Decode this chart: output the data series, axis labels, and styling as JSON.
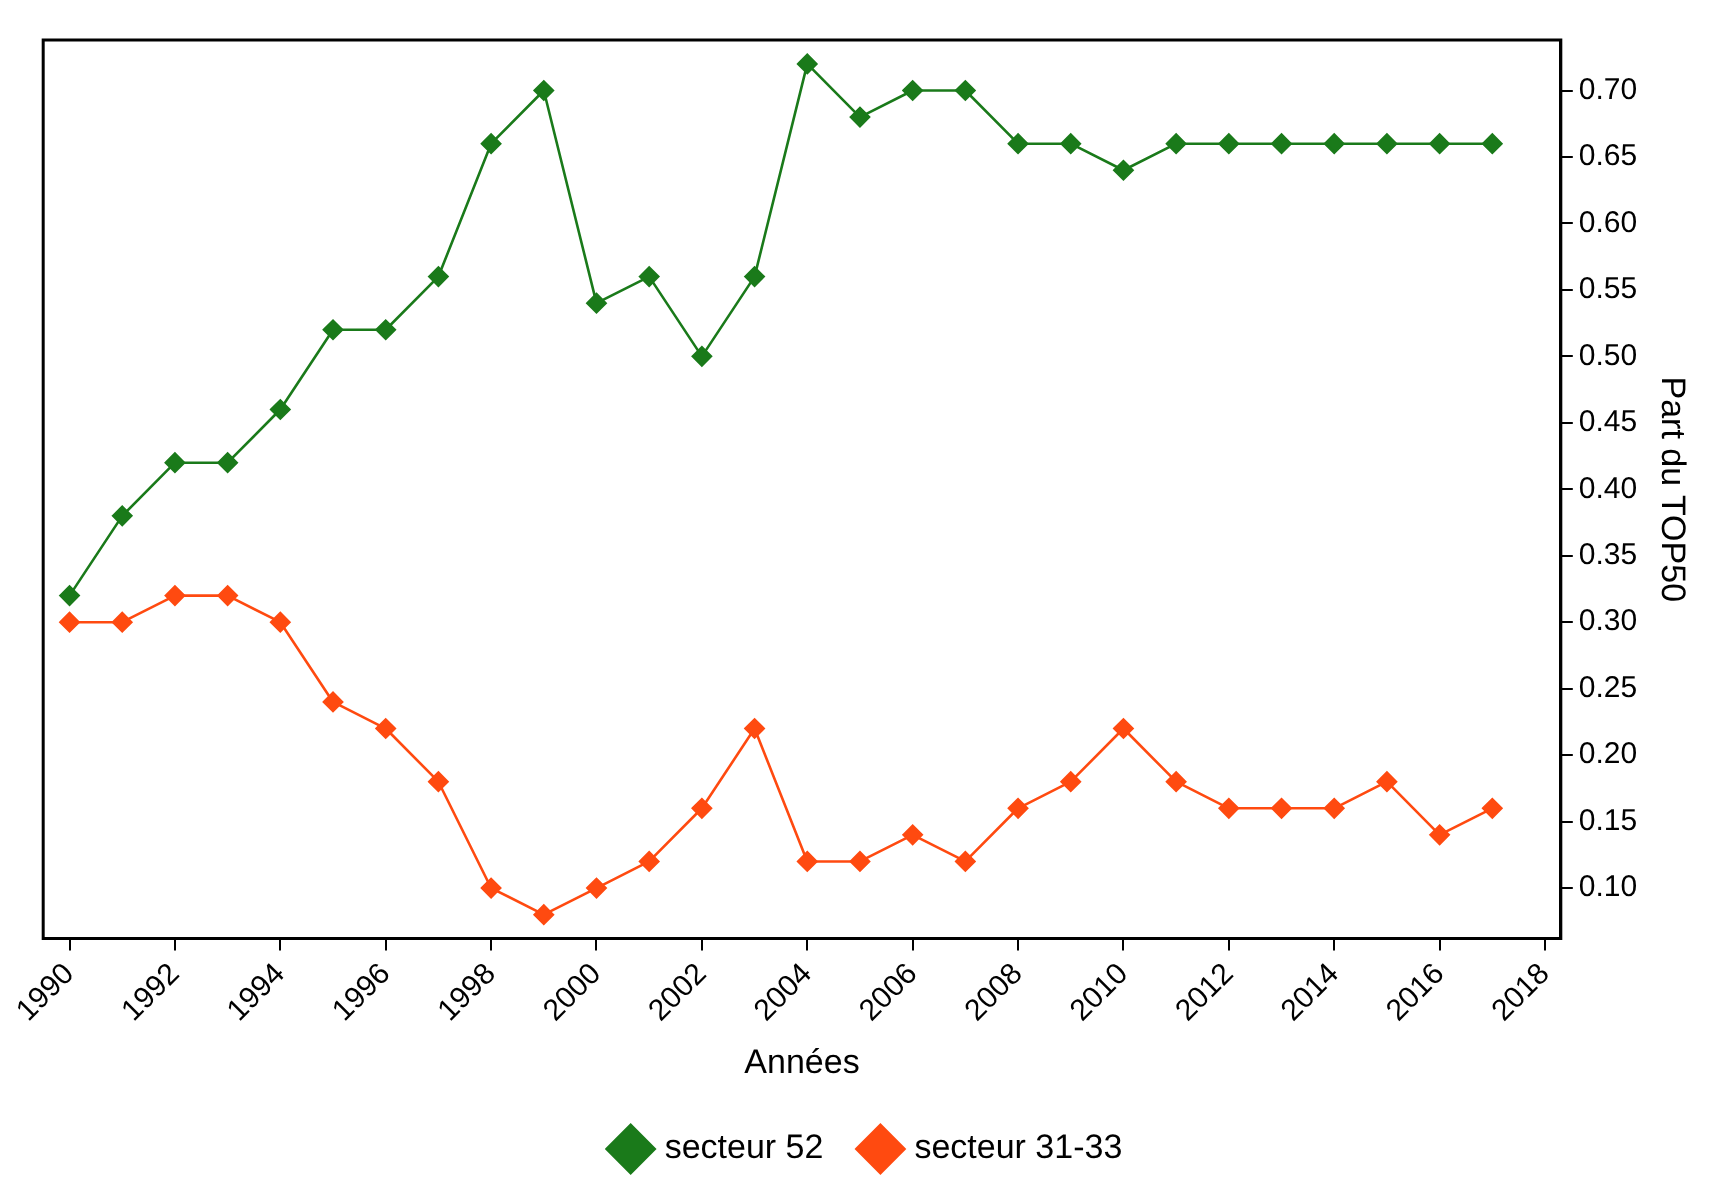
{
  "chart_data": {
    "type": "line",
    "xlabel": "Années",
    "ylabel": "Part du TOP50",
    "x": [
      1990,
      1991,
      1992,
      1993,
      1994,
      1995,
      1996,
      1997,
      1998,
      1999,
      2000,
      2001,
      2002,
      2003,
      2004,
      2005,
      2006,
      2007,
      2008,
      2009,
      2010,
      2011,
      2012,
      2013,
      2014,
      2015,
      2016,
      2017
    ],
    "series": [
      {
        "name": "secteur 52",
        "color": "#1a7a1a",
        "values": [
          0.32,
          0.38,
          0.42,
          0.42,
          0.46,
          0.52,
          0.52,
          0.56,
          0.66,
          0.7,
          0.54,
          0.56,
          0.5,
          0.56,
          0.72,
          0.68,
          0.7,
          0.7,
          0.66,
          0.66,
          0.64,
          0.66,
          0.66,
          0.66,
          0.66,
          0.66,
          0.66,
          0.66
        ]
      },
      {
        "name": "secteur 31-33",
        "color": "#ff4a10",
        "values": [
          0.3,
          0.3,
          0.32,
          0.32,
          0.3,
          0.24,
          0.22,
          0.18,
          0.1,
          0.08,
          0.1,
          0.12,
          0.16,
          0.22,
          0.12,
          0.12,
          0.14,
          0.12,
          0.16,
          0.18,
          0.22,
          0.18,
          0.16,
          0.16,
          0.16,
          0.18,
          0.14,
          0.16
        ]
      }
    ],
    "xlim": [
      1989.5,
      2018.3
    ],
    "xticks": [
      1990,
      1992,
      1994,
      1996,
      1998,
      2000,
      2002,
      2004,
      2006,
      2008,
      2010,
      2012,
      2014,
      2016,
      2018
    ],
    "ylim": [
      0.062,
      0.738
    ],
    "yticks": [
      {
        "value": 0.1,
        "label": "0.10"
      },
      {
        "value": 0.15,
        "label": "0.15"
      },
      {
        "value": 0.2,
        "label": "0.20"
      },
      {
        "value": 0.25,
        "label": "0.25"
      },
      {
        "value": 0.3,
        "label": "0.30"
      },
      {
        "value": 0.35,
        "label": "0.35"
      },
      {
        "value": 0.4,
        "label": "0.40"
      },
      {
        "value": 0.45,
        "label": "0.45"
      },
      {
        "value": 0.5,
        "label": "0.50"
      },
      {
        "value": 0.55,
        "label": "0.55"
      },
      {
        "value": 0.6,
        "label": "0.60"
      },
      {
        "value": 0.65,
        "label": "0.65"
      },
      {
        "value": 0.7,
        "label": "0.70"
      }
    ],
    "grid": false,
    "legend": "bottom",
    "marker": "diamond",
    "line_style": "solid"
  }
}
